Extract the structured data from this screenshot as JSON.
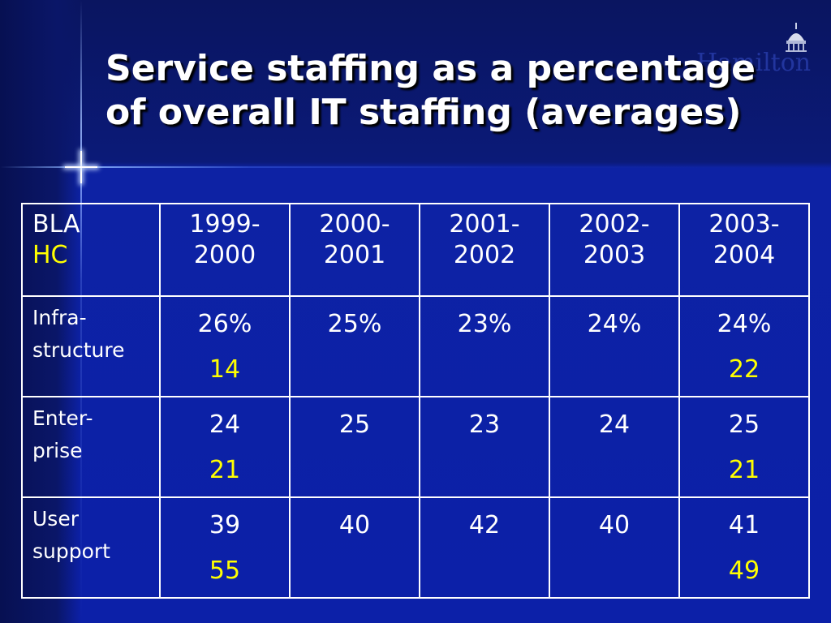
{
  "slide": {
    "title_line1": "Service staffing as a percentage",
    "title_line2": "of overall IT staffing (averages)",
    "logo_text": "Hamilton",
    "colors": {
      "background": "#0c20a8",
      "text": "#ffffff",
      "hc_highlight": "#ffff00",
      "logo": "#2a3fb0"
    }
  },
  "table": {
    "header": {
      "label_bla": "BLA",
      "label_hc": "HC",
      "years": [
        {
          "line1": "1999-",
          "line2": "2000"
        },
        {
          "line1": "2000-",
          "line2": "2001"
        },
        {
          "line1": "2001-",
          "line2": "2002"
        },
        {
          "line1": "2002-",
          "line2": "2003"
        },
        {
          "line1": "2003-",
          "line2": "2004"
        }
      ]
    },
    "rows": [
      {
        "label_line1": "Infra-",
        "label_line2": "structure",
        "bla": [
          "26%",
          "25%",
          "23%",
          "24%",
          "24%"
        ],
        "hc": [
          "14",
          "",
          "",
          "",
          "22"
        ]
      },
      {
        "label_line1": "Enter-",
        "label_line2": "prise",
        "bla": [
          "24",
          "25",
          "23",
          "24",
          "25"
        ],
        "hc": [
          "21",
          "",
          "",
          "",
          "21"
        ]
      },
      {
        "label_line1": "User",
        "label_line2": "support",
        "bla": [
          "39",
          "40",
          "42",
          "40",
          "41"
        ],
        "hc": [
          "55",
          "",
          "",
          "",
          "49"
        ]
      }
    ]
  }
}
